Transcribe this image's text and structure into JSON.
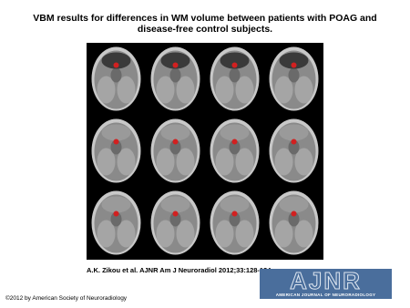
{
  "header": {
    "title": "VBM results for differences in WM volume between patients with POAG and disease-free control subjects."
  },
  "citation": "A.K. Zikou et al. AJNR Am J Neuroradiol 2012;33:128-134",
  "logo": {
    "text": "AJNR",
    "subtitle": "AMERICAN JOURNAL OF NEURORADIOLOGY"
  },
  "copyright": "©2012 by American Society of Neuroradiology"
}
